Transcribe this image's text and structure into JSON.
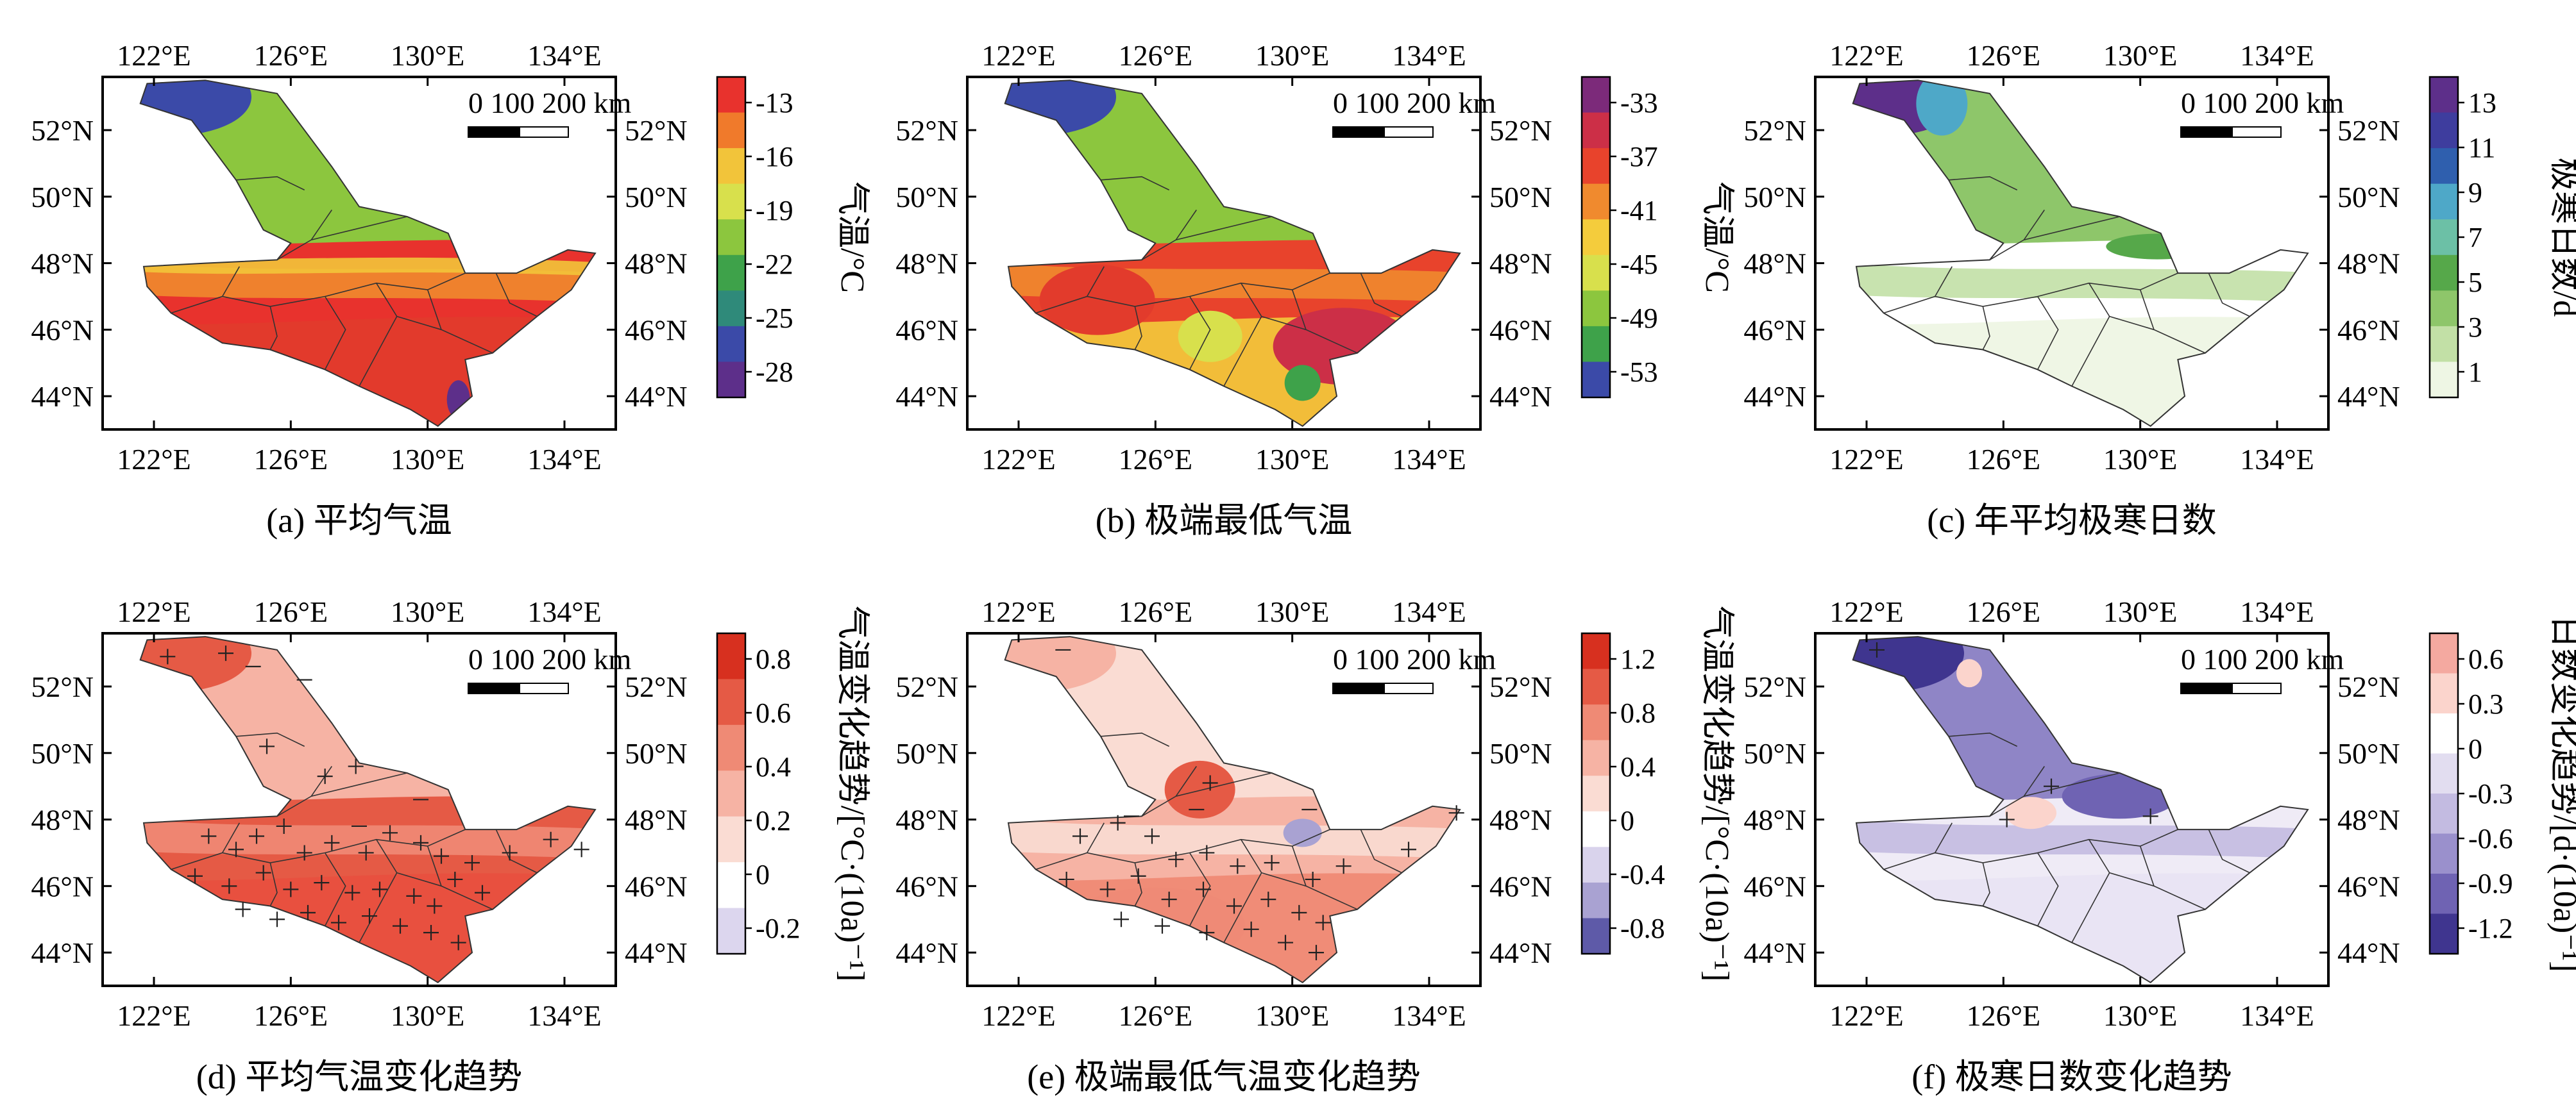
{
  "panels": [
    {
      "id": "a",
      "caption": "(a) 平均气温",
      "colorbar_label": "气温/°C",
      "colorbar_ticks": [
        "-13",
        "-16",
        "-19",
        "-22",
        "-25",
        "-28"
      ],
      "colormap": [
        "#e8322d",
        "#f07a2b",
        "#f2c43a",
        "#d8e04c",
        "#8cc63e",
        "#3ea24a",
        "#2f8a7a",
        "#3b4aa8",
        "#5d2f8a"
      ],
      "layers": [
        "r",
        "r",
        "g",
        "g"
      ],
      "markers": false
    },
    {
      "id": "b",
      "caption": "(b) 极端最低气温",
      "colorbar_label": "气温/°C",
      "colorbar_ticks": [
        "-33",
        "-37",
        "-41",
        "-45",
        "-49",
        "-53"
      ],
      "colormap": [
        "#7c2a7a",
        "#cc2f47",
        "#e8432c",
        "#f08a2e",
        "#f4cc3c",
        "#d8e04c",
        "#8cc63e",
        "#3ea24a",
        "#3b4aa8"
      ],
      "layers": [
        "r",
        "y",
        "g",
        "g"
      ],
      "markers": false
    },
    {
      "id": "c",
      "caption": "(c) 年平均极寒日数",
      "colorbar_label": "极寒日数/d",
      "colorbar_ticks": [
        "13",
        "11",
        "9",
        "7",
        "5",
        "3",
        "1"
      ],
      "colormap": [
        "#5d2f8a",
        "#3e3d9e",
        "#2f5fae",
        "#4ea8c8",
        "#6cc0a6",
        "#56a84a",
        "#8ec66a",
        "#c2e0a6",
        "#eef6e4"
      ],
      "layers": [
        "w",
        "lg",
        "g",
        "pu"
      ],
      "markers": false
    },
    {
      "id": "d",
      "caption": "(d) 平均气温变化趋势",
      "colorbar_label": "气温变化趋势/[°C·(10a)⁻¹]",
      "colorbar_ticks": [
        "0.8",
        "0.6",
        "0.4",
        "0.2",
        "0",
        "-0.2"
      ],
      "colormap": [
        "#d7301f",
        "#e55a45",
        "#ef8a75",
        "#f6b3a4",
        "#fadcd3",
        "#ffffff",
        "#dcd6ee"
      ],
      "layers": [
        "r",
        "r",
        "pk",
        "pk"
      ],
      "markers": true
    },
    {
      "id": "e",
      "caption": "(e) 极端最低气温变化趋势",
      "colorbar_label": "气温变化趋势/[°C·(10a)⁻¹]",
      "colorbar_ticks": [
        "1.2",
        "0.8",
        "0.4",
        "0",
        "-0.4",
        "-0.8"
      ],
      "colormap": [
        "#d7301f",
        "#e55a45",
        "#ef8a75",
        "#f6b3a4",
        "#fadcd3",
        "#ffffff",
        "#d9d3ec",
        "#a9a2d2",
        "#5e5aa8"
      ],
      "layers": [
        "r",
        "pk",
        "pk",
        "w"
      ],
      "markers": true
    },
    {
      "id": "f",
      "caption": "(f) 极寒日数变化趋势",
      "colorbar_label": "日数变化趋势/[d·(10a)⁻¹]",
      "colorbar_ticks": [
        "0.6",
        "0.3",
        "0",
        "-0.3",
        "-0.6",
        "-0.9",
        "-1.2"
      ],
      "colormap": [
        "#f4a9a0",
        "#fbd4cc",
        "#ffffff",
        "#e2ddf0",
        "#c3bbe1",
        "#9a90cc",
        "#6f63b3",
        "#3f358f"
      ],
      "layers": [
        "lp",
        "lp",
        "mp",
        "dp"
      ],
      "markers": true
    }
  ],
  "top_lon_labels": [
    "122°E",
    "126°E",
    "130°E",
    "134°E"
  ],
  "bottom_lon_labels": [
    "122°E",
    "126°E",
    "130°E",
    "134°E"
  ],
  "left_lat_labels": [
    "52°N",
    "50°N",
    "48°N",
    "46°N",
    "44°N"
  ],
  "right_lat_labels": [
    "52°N",
    "50°N",
    "48°N",
    "46°N",
    "44°N"
  ],
  "scale_bar_label": "0 100 200 km"
}
